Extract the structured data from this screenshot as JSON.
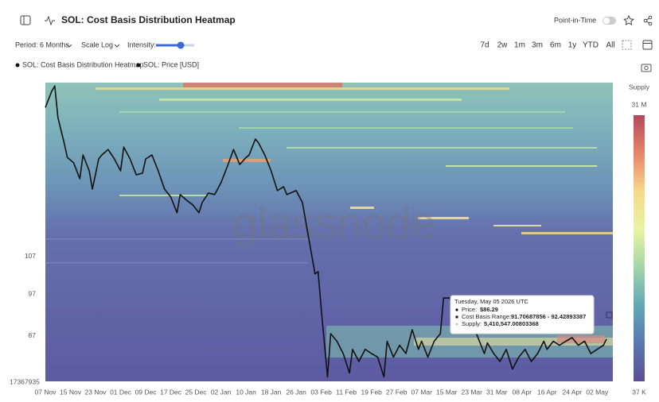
{
  "toolbar": {
    "title": "SOL: Cost Basis Distribution Heatmap",
    "point_in_time": "Point-in-Time",
    "period": "Period: 6 Months",
    "scale": "Scale Log",
    "intensity": "Intensity:",
    "ranges": [
      "7d",
      "2w",
      "1m",
      "3m",
      "6m",
      "1y",
      "YTD",
      "All"
    ]
  },
  "chart_data": {
    "type": "line",
    "heatmap": {
      "name": "SOL: Cost Basis Distribution Heatmap"
    },
    "watermark": "glassnode",
    "y_corner_label": "17367935",
    "y_scale": "log",
    "x": [
      "2025-11-07",
      "2025-11-09",
      "2025-11-10",
      "2025-11-11",
      "2025-11-13",
      "2025-11-14",
      "2025-11-16",
      "2025-11-18",
      "2025-11-19",
      "2025-11-21",
      "2025-11-22",
      "2025-11-24",
      "2025-11-25",
      "2025-11-27",
      "2025-11-29",
      "2025-12-01",
      "2025-12-02",
      "2025-12-04",
      "2025-12-06",
      "2025-12-08",
      "2025-12-09",
      "2025-12-11",
      "2025-12-13",
      "2025-12-15",
      "2025-12-17",
      "2025-12-19",
      "2025-12-20",
      "2025-12-22",
      "2025-12-24",
      "2025-12-26",
      "2025-12-27",
      "2025-12-29",
      "2025-12-31",
      "2026-01-02",
      "2026-01-04",
      "2026-01-06",
      "2026-01-08",
      "2026-01-10",
      "2026-01-11",
      "2026-01-13",
      "2026-01-14",
      "2026-01-16",
      "2026-01-18",
      "2026-01-20",
      "2026-01-22",
      "2026-01-23",
      "2026-01-26",
      "2026-01-28",
      "2026-01-30",
      "2026-02-01",
      "2026-02-02",
      "2026-02-03",
      "2026-02-05",
      "2026-02-06",
      "2026-02-08",
      "2026-02-10",
      "2026-02-12",
      "2026-02-13",
      "2026-02-15",
      "2026-02-17",
      "2026-02-19",
      "2026-02-21",
      "2026-02-23",
      "2026-02-24",
      "2026-02-26",
      "2026-02-28",
      "2026-03-02",
      "2026-03-04",
      "2026-03-06",
      "2026-03-07",
      "2026-03-09",
      "2026-03-11",
      "2026-03-13",
      "2026-03-14",
      "2026-03-16",
      "2026-03-18",
      "2026-03-21",
      "2026-03-23",
      "2026-03-25",
      "2026-03-27",
      "2026-03-28",
      "2026-03-30",
      "2026-04-01",
      "2026-04-03",
      "2026-04-05",
      "2026-04-07",
      "2026-04-09",
      "2026-04-11",
      "2026-04-13",
      "2026-04-15",
      "2026-04-16",
      "2026-04-18",
      "2026-04-20",
      "2026-04-22",
      "2026-04-24",
      "2026-04-26",
      "2026-04-28",
      "2026-04-30",
      "2026-05-02",
      "2026-05-04",
      "2026-05-05"
    ],
    "series": [
      {
        "name": "SOL: Price [USD]",
        "color": "#111111",
        "values": [
          157.5,
          164.2,
          166.6,
          153.4,
          143.6,
          138.3,
          136.4,
          130.9,
          139.2,
          133.6,
          127.4,
          137.8,
          139.2,
          141.2,
          137.8,
          133.6,
          142.1,
          137.8,
          132.2,
          132.8,
          137.8,
          139.2,
          133.6,
          127.4,
          124.8,
          119.8,
          125.6,
          123.8,
          122.3,
          119.8,
          123.0,
          126.1,
          125.6,
          129.5,
          135.0,
          141.2,
          135.8,
          138.3,
          139.2,
          145.1,
          143.6,
          139.2,
          133.6,
          126.9,
          128.2,
          125.6,
          126.9,
          123.0,
          112.1,
          102.2,
          102.8,
          93.1,
          78.2,
          87.5,
          85.8,
          83.1,
          79.0,
          84.0,
          81.4,
          84.0,
          83.1,
          82.3,
          78.2,
          85.8,
          82.3,
          84.9,
          83.1,
          88.4,
          84.0,
          85.8,
          82.3,
          85.8,
          87.5,
          96.0,
          96.0,
          91.2,
          87.9,
          90.3,
          86.6,
          83.1,
          85.4,
          83.1,
          81.4,
          84.0,
          79.8,
          82.3,
          84.0,
          81.4,
          83.1,
          85.8,
          84.0,
          85.8,
          84.9,
          85.8,
          86.6,
          84.9,
          85.8,
          83.1,
          84.0,
          84.9,
          86.29
        ]
      }
    ],
    "xlim": [
      "2025-11-07",
      "2026-05-07"
    ],
    "xticks": [
      {
        "value": "2025-11-07",
        "label": "07 Nov"
      },
      {
        "value": "2025-11-15",
        "label": "15 Nov"
      },
      {
        "value": "2025-11-23",
        "label": "23 Nov"
      },
      {
        "value": "2025-12-01",
        "label": "01 Dec"
      },
      {
        "value": "2025-12-09",
        "label": "09 Dec"
      },
      {
        "value": "2025-12-17",
        "label": "17 Dec"
      },
      {
        "value": "2025-12-25",
        "label": "25 Dec"
      },
      {
        "value": "2026-01-02",
        "label": "02 Jan"
      },
      {
        "value": "2026-01-10",
        "label": "10 Jan"
      },
      {
        "value": "2026-01-18",
        "label": "18 Jan"
      },
      {
        "value": "2026-01-26",
        "label": "26 Jan"
      },
      {
        "value": "2026-02-03",
        "label": "03 Feb"
      },
      {
        "value": "2026-02-11",
        "label": "11 Feb"
      },
      {
        "value": "2026-02-19",
        "label": "19 Feb"
      },
      {
        "value": "2026-02-27",
        "label": "27 Feb"
      },
      {
        "value": "2026-03-07",
        "label": "07 Mar"
      },
      {
        "value": "2026-03-15",
        "label": "15 Mar"
      },
      {
        "value": "2026-03-23",
        "label": "23 Mar"
      },
      {
        "value": "2026-03-31",
        "label": "31 Mar"
      },
      {
        "value": "2026-04-08",
        "label": "08 Apr"
      },
      {
        "value": "2026-04-16",
        "label": "16 Apr"
      },
      {
        "value": "2026-04-24",
        "label": "24 Apr"
      },
      {
        "value": "2026-05-02",
        "label": "02 May"
      }
    ],
    "ylim": [
      77.3,
      168
    ],
    "yticks": [
      87,
      97,
      107
    ],
    "colorbar": {
      "title": "Supply",
      "max_label": "31 M",
      "min_label": "37 K",
      "colors": [
        "#b5485e",
        "#e9836a",
        "#f6d88b",
        "#eaf4a4",
        "#a3d6a7",
        "#62a9b6",
        "#5a77b1",
        "#5b4f94"
      ]
    },
    "tooltip": {
      "date": "Tuesday, May 05 2026 UTC",
      "price_label": "Price:",
      "price": "$86.29",
      "range_label": "Cost Basis Range:",
      "range": "91.70687856 - 92.42893387",
      "supply_label": "Supply:",
      "supply": "5,410,547.00803368"
    }
  }
}
